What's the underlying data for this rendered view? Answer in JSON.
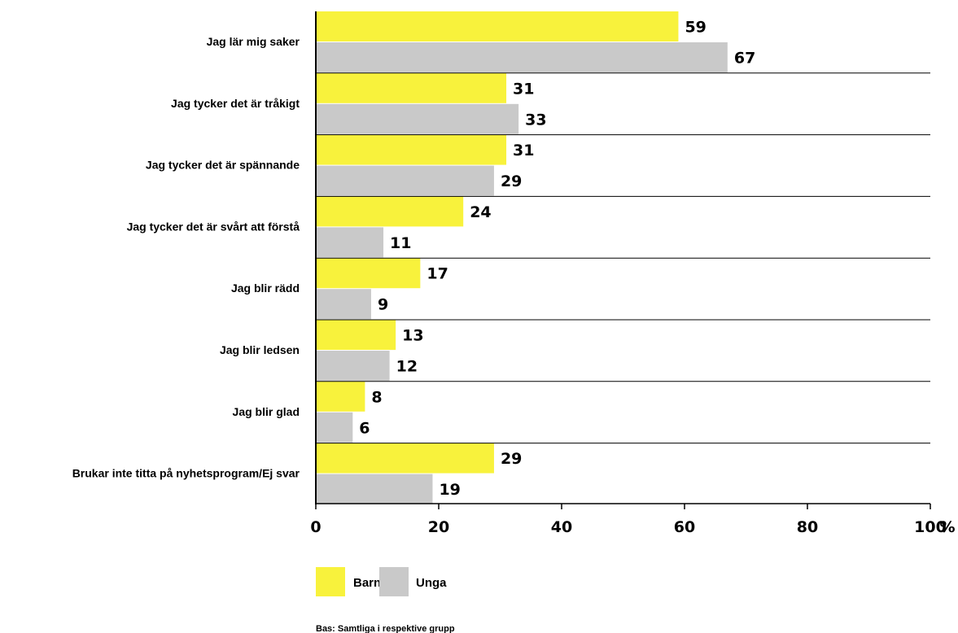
{
  "chart_data": {
    "type": "bar",
    "orientation": "horizontal",
    "categories": [
      "Jag lär mig saker",
      "Jag tycker det är tråkigt",
      "Jag tycker det är spännande",
      "Jag tycker det är svårt att förstå",
      "Jag blir rädd",
      "Jag blir ledsen",
      "Jag blir glad",
      "Brukar inte titta på nyhetsprogram/Ej svar"
    ],
    "series": [
      {
        "name": "Barn",
        "color": "#f8f23c",
        "values": [
          59,
          31,
          31,
          24,
          17,
          13,
          8,
          29
        ]
      },
      {
        "name": "Unga",
        "color": "#c9c9c9",
        "values": [
          67,
          33,
          29,
          11,
          9,
          12,
          6,
          19
        ]
      }
    ],
    "xlim": [
      0,
      100
    ],
    "xticks": [
      "0",
      "20",
      "40",
      "60",
      "80",
      "100"
    ],
    "xtick_values": [
      0,
      20,
      40,
      60,
      80,
      100
    ],
    "xunit": "%",
    "legend_position": "bottom-left",
    "grid": false,
    "note": "Bas: Samtliga i respektive grupp"
  }
}
